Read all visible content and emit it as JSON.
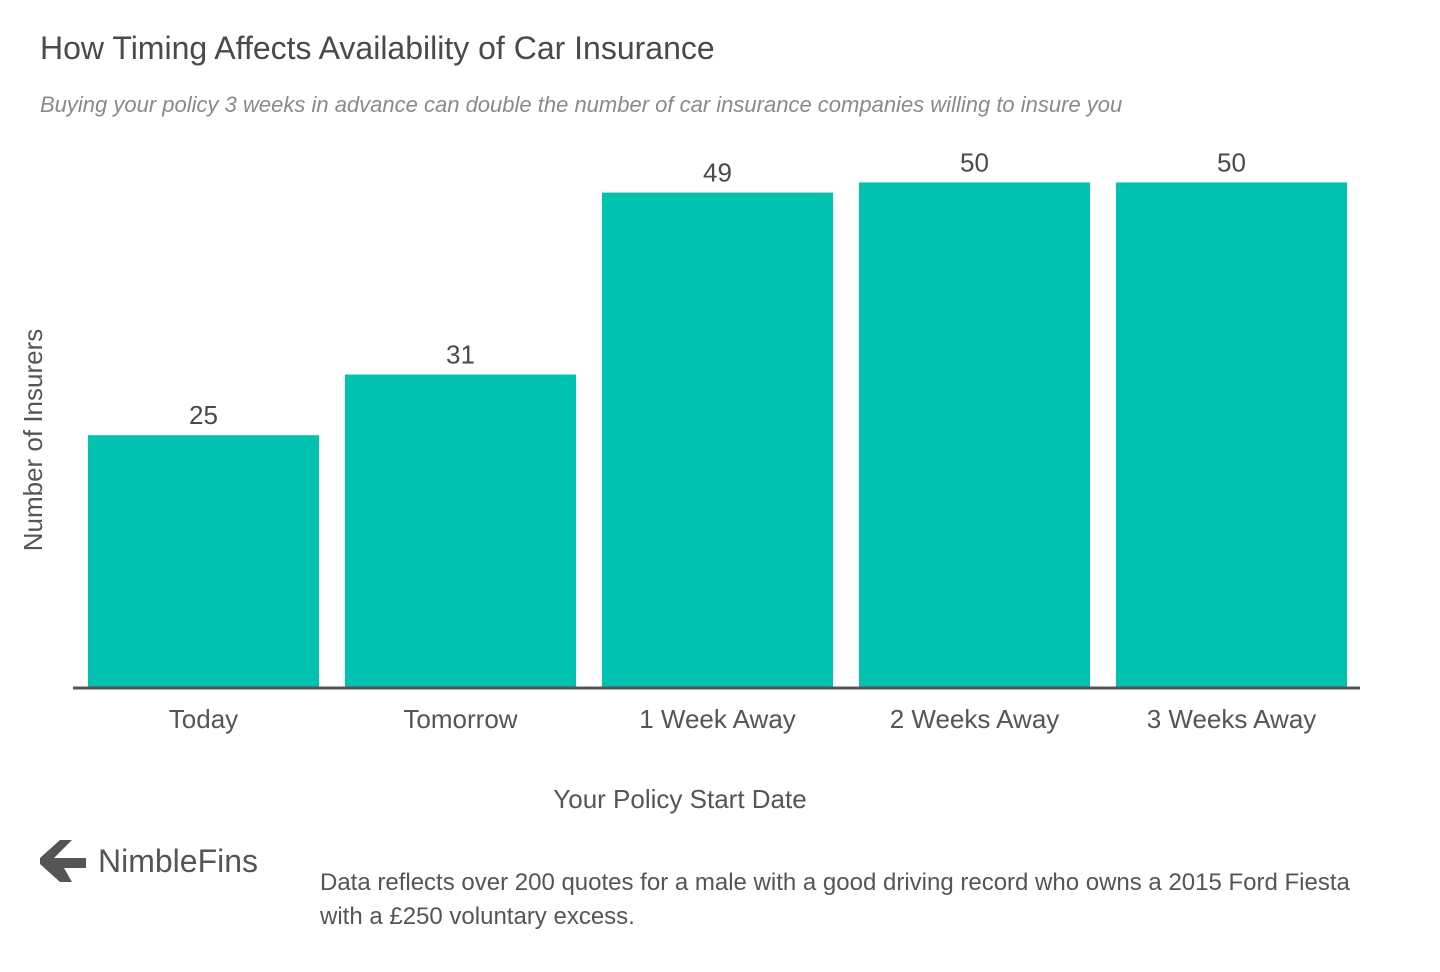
{
  "chart_data": {
    "type": "bar",
    "title": "How Timing Affects Availability of Car Insurance",
    "subtitle": "Buying your policy 3 weeks in advance can double the number of car insurance companies willing to insure you",
    "xlabel": "Your Policy Start Date",
    "ylabel": "Number of Insurers",
    "categories": [
      "Today",
      "Tomorrow",
      "1 Week Away",
      "2 Weeks Away",
      "3 Weeks Away"
    ],
    "values": [
      25,
      31,
      49,
      50,
      50
    ],
    "ylim": [
      0,
      54
    ],
    "grid": false,
    "legend": "none",
    "bar_color": "#00c2b0",
    "axis_color": "#555555"
  },
  "branding": {
    "logo_text": "NimbleFins",
    "logo_color": "#555555"
  },
  "footnote": "Data reflects over 200 quotes for a male with a good driving record who owns a 2015 Ford Fiesta with a £250 voluntary excess."
}
